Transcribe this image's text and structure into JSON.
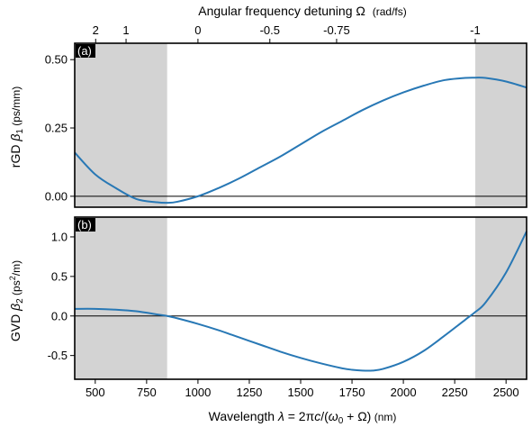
{
  "chart_data": [
    {
      "panel": "(a)",
      "type": "line",
      "ylabel": "rGD β1 (ps/mm)",
      "xlim": [
        400,
        2600
      ],
      "ylim": [
        -0.04,
        0.56
      ],
      "yticks": [
        0.0,
        0.25,
        0.5
      ],
      "ytick_labels": [
        "0.00",
        "0.25",
        "0.50"
      ],
      "shaded_x_ranges": [
        [
          400,
          850
        ],
        [
          2350,
          2600
        ]
      ],
      "zero_line": true,
      "series": [
        {
          "color": "#2878b5",
          "x": [
            400,
            500,
            600,
            700,
            800,
            850,
            900,
            1000,
            1100,
            1200,
            1300,
            1400,
            1500,
            1600,
            1700,
            1800,
            1900,
            2000,
            2100,
            2200,
            2300,
            2350,
            2400,
            2500,
            2600
          ],
          "y": [
            0.16,
            0.08,
            0.03,
            -0.01,
            -0.022,
            -0.024,
            -0.02,
            0.0,
            0.03,
            0.065,
            0.105,
            0.145,
            0.19,
            0.235,
            0.275,
            0.315,
            0.35,
            0.38,
            0.405,
            0.425,
            0.433,
            0.434,
            0.433,
            0.42,
            0.398
          ]
        }
      ]
    },
    {
      "panel": "(b)",
      "type": "line",
      "ylabel": "GVD β2 (ps²/m)",
      "xlabel": "Wavelength λ = 2πc/(ω0 + Ω) (nm)",
      "xlim": [
        400,
        2600
      ],
      "ylim": [
        -0.8,
        1.25
      ],
      "xticks": [
        500,
        750,
        1000,
        1250,
        1500,
        1750,
        2000,
        2250,
        2500
      ],
      "yticks": [
        -0.5,
        0.0,
        0.5,
        1.0
      ],
      "ytick_labels": [
        "-0.5",
        "0.0",
        "0.5",
        "1.0"
      ],
      "shaded_x_ranges": [
        [
          400,
          850
        ],
        [
          2350,
          2600
        ]
      ],
      "zero_line": true,
      "series": [
        {
          "color": "#2878b5",
          "x": [
            400,
            500,
            600,
            700,
            800,
            850,
            900,
            1000,
            1100,
            1200,
            1300,
            1400,
            1500,
            1600,
            1700,
            1750,
            1800,
            1850,
            1900,
            2000,
            2100,
            2200,
            2300,
            2350,
            2400,
            2500,
            2600
          ],
          "y": [
            0.09,
            0.09,
            0.08,
            0.06,
            0.02,
            0.0,
            -0.03,
            -0.1,
            -0.18,
            -0.27,
            -0.36,
            -0.45,
            -0.53,
            -0.6,
            -0.66,
            -0.68,
            -0.69,
            -0.69,
            -0.67,
            -0.58,
            -0.44,
            -0.25,
            -0.05,
            0.05,
            0.17,
            0.55,
            1.07
          ]
        }
      ]
    }
  ],
  "top_axis": {
    "label_main": "Angular frequency detuning Ω",
    "label_unit": "(rad/fs)",
    "ticks": [
      {
        "label": "2",
        "wavelength": 502
      },
      {
        "label": "1",
        "wavelength": 650
      },
      {
        "label": "0",
        "wavelength": 1000
      },
      {
        "label": "-0.5",
        "wavelength": 1350
      },
      {
        "label": "-0.75",
        "wavelength": 1675
      },
      {
        "label": "-1",
        "wavelength": 2350
      }
    ]
  },
  "xlabel_parts": {
    "prefix": "Wavelength ",
    "lambda": "λ",
    "eq": " = 2π",
    "c": "c",
    "slash": "/(",
    "omega": "ω",
    "sub0": "0",
    "plus": " + Ω)",
    "unit": " (nm)"
  },
  "ylabel_a": {
    "prefix": "rGD ",
    "beta": "β",
    "sub": "1",
    "unit": " (ps/mm)"
  },
  "ylabel_b": {
    "prefix": "GVD ",
    "beta": "β",
    "sub": "2",
    "unit_pre": " (ps",
    "sup": "2",
    "unit_post": "/m)"
  },
  "panel_labels": [
    "(a)",
    "(b)"
  ],
  "colors": {
    "line": "#2878b5",
    "shade": "#d3d3d3"
  }
}
